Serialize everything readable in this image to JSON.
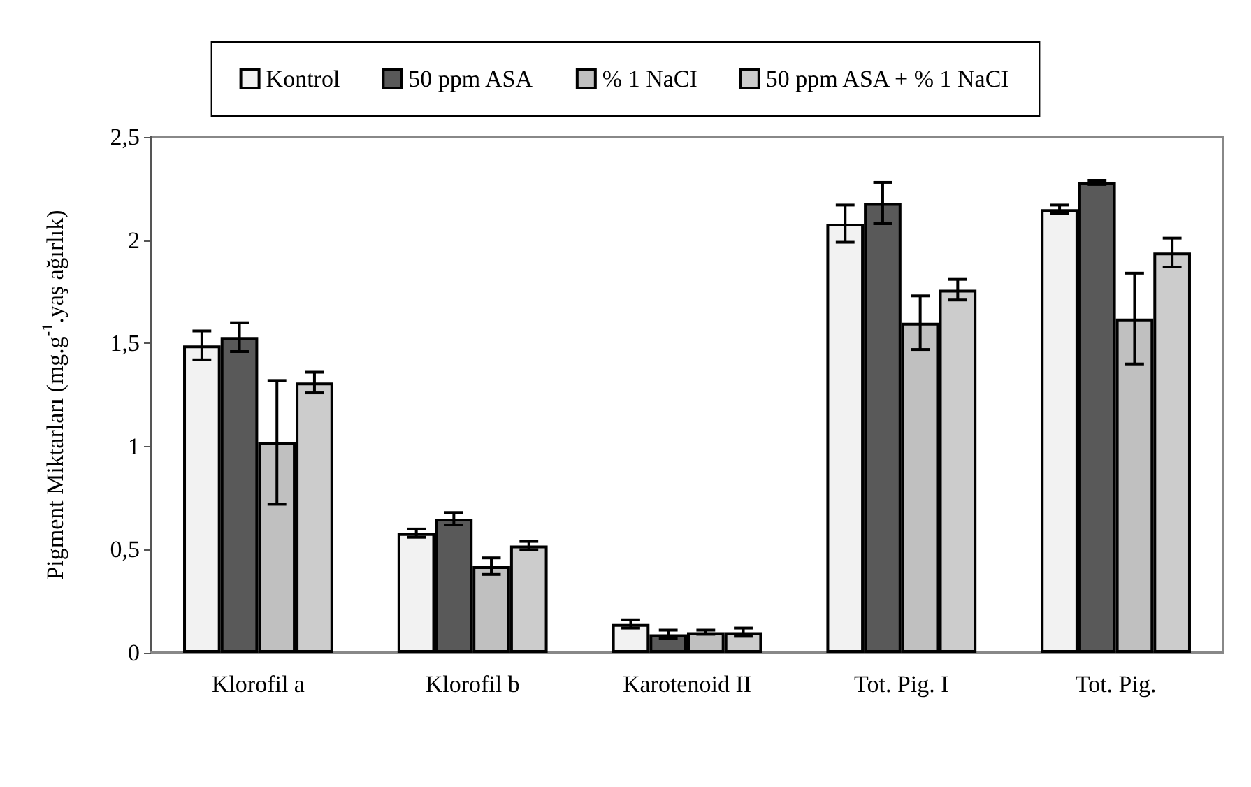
{
  "chart_data": {
    "type": "bar",
    "ylabel": "Pigment Miktarları (mg.g$^{-1}$.yaş ağırlık)",
    "categories": [
      "Klorofil a",
      "Klorofil b",
      "Karotenoid II",
      "Tot. Pig. I",
      "Tot. Pig."
    ],
    "series": [
      {
        "name": "Kontrol",
        "color": "#f2f2f2",
        "values": [
          1.49,
          0.58,
          0.14,
          2.08,
          2.15
        ],
        "errors": [
          0.07,
          0.02,
          0.02,
          0.09,
          0.02
        ]
      },
      {
        "name": "50 ppm ASA",
        "color": "#595959",
        "values": [
          1.53,
          0.65,
          0.09,
          2.18,
          2.28
        ],
        "errors": [
          0.07,
          0.03,
          0.02,
          0.1,
          0.01
        ]
      },
      {
        "name": "% 1 NaCI",
        "color": "#c0c0c0",
        "values": [
          1.02,
          0.42,
          0.1,
          1.6,
          1.62
        ],
        "errors": [
          0.3,
          0.04,
          0.01,
          0.13,
          0.22
        ]
      },
      {
        "name": "50 ppm ASA + % 1 NaCI",
        "color": "#cccccc",
        "values": [
          1.31,
          0.52,
          0.1,
          1.76,
          1.94
        ],
        "errors": [
          0.05,
          0.02,
          0.02,
          0.05,
          0.07
        ]
      }
    ],
    "ylim": [
      0,
      2.5
    ],
    "yticks": [
      0,
      {
        "value": 0.5,
        "label": "0,5"
      },
      1,
      {
        "value": 1.5,
        "label": "1,5"
      },
      2,
      {
        "value": 2.5,
        "label": "2,5"
      }
    ],
    "grid": false,
    "legend": "top"
  }
}
